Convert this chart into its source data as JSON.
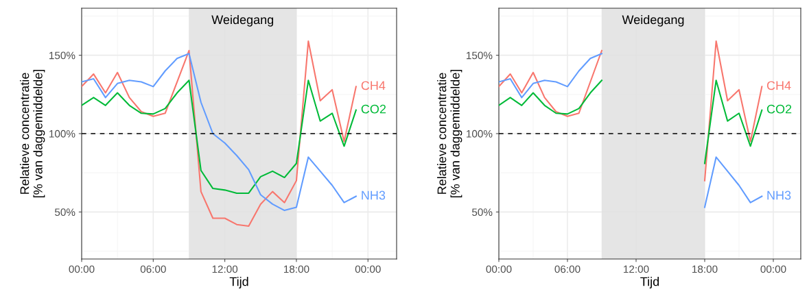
{
  "chart_data": [
    {
      "type": "line",
      "xlabel": "Tijd",
      "ylabel": "Relatieve concentratie\n[% van daggemiddelde]",
      "x": [
        0,
        1,
        2,
        3,
        4,
        5,
        6,
        7,
        8,
        9,
        10,
        11,
        12,
        13,
        14,
        15,
        16,
        17,
        18,
        19,
        20,
        21,
        22,
        23
      ],
      "series": [
        {
          "name": "CH4",
          "color": "#f8766d",
          "values": [
            130,
            138,
            126,
            139,
            123,
            114,
            111,
            113,
            133,
            153,
            63,
            46,
            46,
            42,
            41,
            55,
            63,
            56,
            70,
            159,
            121,
            128,
            95,
            130
          ]
        },
        {
          "name": "CO2",
          "color": "#00ba38",
          "values": [
            118,
            123,
            118,
            126,
            118,
            113,
            112.5,
            116,
            126,
            134,
            76.5,
            65,
            64,
            62,
            62,
            72.5,
            76,
            72,
            81,
            134,
            108,
            113,
            92,
            115
          ]
        },
        {
          "name": "NH3",
          "color": "#619cff",
          "values": [
            133,
            135,
            123,
            132,
            134,
            133,
            130,
            140,
            148,
            151,
            120,
            100,
            94,
            86,
            77,
            61,
            55,
            51,
            53,
            85,
            76,
            67,
            56,
            60
          ]
        }
      ],
      "xlim": [
        0,
        26.4
      ],
      "ylim": [
        20,
        180
      ],
      "xticks": [
        {
          "value": 0,
          "label": "00:00"
        },
        {
          "value": 6,
          "label": "06:00"
        },
        {
          "value": 12,
          "label": "12:00"
        },
        {
          "value": 18,
          "label": "18:00"
        },
        {
          "value": 24,
          "label": "00:00"
        }
      ],
      "yticks": [
        {
          "value": 50,
          "label": "50%"
        },
        {
          "value": 100,
          "label": "100%"
        },
        {
          "value": 150,
          "label": "150%"
        }
      ],
      "ref_lines": [
        {
          "axis": "y",
          "value": 100,
          "color": "#000000",
          "line_style": "dashed"
        }
      ],
      "bands": [
        {
          "axis": "x",
          "from": 9,
          "to": 18,
          "label": "Weidegang",
          "color": "#e0e0e0"
        }
      ],
      "grid": true,
      "legend": false
    },
    {
      "type": "line",
      "xlabel": "Tijd",
      "ylabel": "Relatieve concentratie\n[% van daggemiddelde]",
      "x": [
        0,
        1,
        2,
        3,
        4,
        5,
        6,
        7,
        8,
        9,
        10,
        11,
        12,
        13,
        14,
        15,
        16,
        17,
        18,
        19,
        20,
        21,
        22,
        23
      ],
      "series": [
        {
          "name": "CH4",
          "color": "#f8766d",
          "values": [
            130,
            138,
            126,
            139,
            123,
            114,
            111,
            113,
            133,
            153,
            null,
            null,
            null,
            null,
            null,
            null,
            null,
            null,
            70,
            159,
            121,
            128,
            95,
            130
          ]
        },
        {
          "name": "CO2",
          "color": "#00ba38",
          "values": [
            118,
            123,
            118,
            126,
            118,
            113,
            112.5,
            116,
            126,
            134,
            null,
            null,
            null,
            null,
            null,
            null,
            null,
            null,
            81,
            134,
            108,
            113,
            92,
            115
          ]
        },
        {
          "name": "NH3",
          "color": "#619cff",
          "values": [
            133,
            135,
            123,
            132,
            134,
            133,
            130,
            140,
            148,
            151,
            null,
            null,
            null,
            null,
            null,
            null,
            null,
            null,
            53,
            85,
            76,
            67,
            56,
            60
          ]
        }
      ],
      "xlim": [
        0,
        26.4
      ],
      "ylim": [
        20,
        180
      ],
      "xticks": [
        {
          "value": 0,
          "label": "00:00"
        },
        {
          "value": 6,
          "label": "06:00"
        },
        {
          "value": 12,
          "label": "12:00"
        },
        {
          "value": 18,
          "label": "18:00"
        },
        {
          "value": 24,
          "label": "00:00"
        }
      ],
      "yticks": [
        {
          "value": 50,
          "label": "50%"
        },
        {
          "value": 100,
          "label": "100%"
        },
        {
          "value": 150,
          "label": "150%"
        }
      ],
      "ref_lines": [
        {
          "axis": "y",
          "value": 100,
          "color": "#000000",
          "line_style": "dashed"
        }
      ],
      "bands": [
        {
          "axis": "x",
          "from": 9,
          "to": 18,
          "label": "Weidegang",
          "color": "#e0e0e0"
        }
      ],
      "grid": true,
      "legend": false
    }
  ]
}
